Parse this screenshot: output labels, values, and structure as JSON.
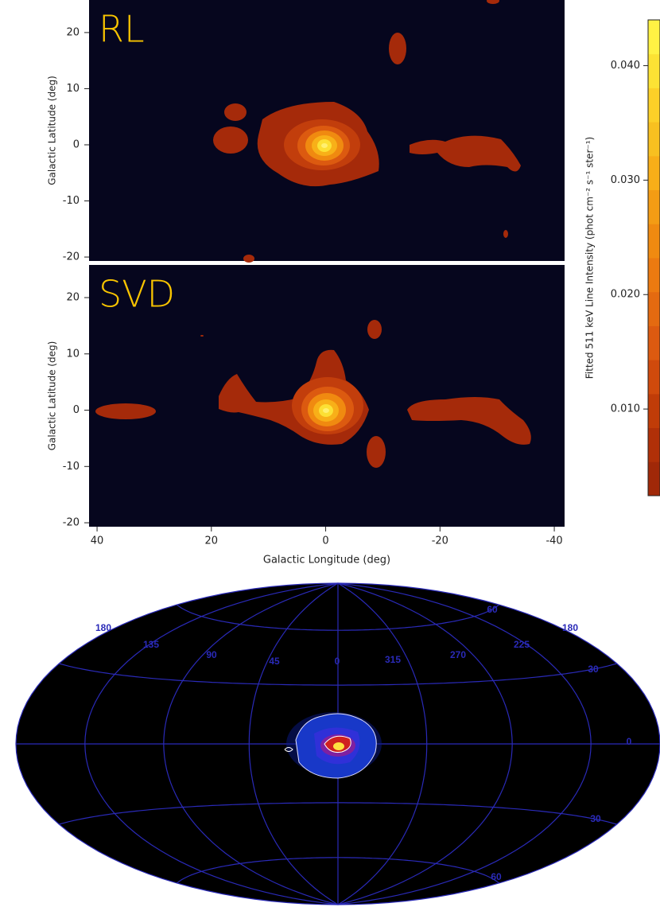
{
  "chart_data": [
    {
      "type": "contour",
      "panel_label": "RL",
      "y_label": "Galactic Latitude (deg)",
      "ylim": [
        -20.7,
        25.8
      ],
      "yticks": [
        -20,
        -10,
        0,
        10,
        20
      ]
    },
    {
      "type": "contour",
      "panel_label": "SVD",
      "y_label": "Galactic Latitude (deg)",
      "x_label": "Galactic Longitude (deg)",
      "xlim": [
        41.4,
        -41.8
      ],
      "xticks": [
        40,
        20,
        0,
        -20,
        -40
      ],
      "ylim": [
        -20.7,
        25.8
      ],
      "yticks": [
        -20,
        -10,
        0,
        10,
        20
      ]
    },
    {
      "type": "colorbar",
      "label": "Fitted 511 keV Line Intensity (phot cm⁻² s⁻¹ ster⁻¹)",
      "ylim": [
        0.00243,
        0.044
      ],
      "yticks": [
        {
          "value": 0.01,
          "label": "0.010"
        },
        {
          "value": 0.02,
          "label": "0.020"
        },
        {
          "value": 0.03,
          "label": "0.030"
        },
        {
          "value": 0.04,
          "label": "0.040"
        }
      ],
      "colors": [
        "#a02808",
        "#b03008",
        "#c03c08",
        "#d04a0c",
        "#dc5a10",
        "#e46a10",
        "#ec7a10",
        "#f08a10",
        "#f49c14",
        "#f8ae18",
        "#f8c020",
        "#fcd028",
        "#fce234",
        "#fff244"
      ]
    },
    {
      "type": "aitoff",
      "lon_labels": [
        "180",
        "135",
        "90",
        "45",
        "0",
        "315",
        "270",
        "225",
        "180"
      ],
      "lat_labels": [
        "60",
        "30",
        "0",
        "30",
        "60"
      ]
    }
  ]
}
